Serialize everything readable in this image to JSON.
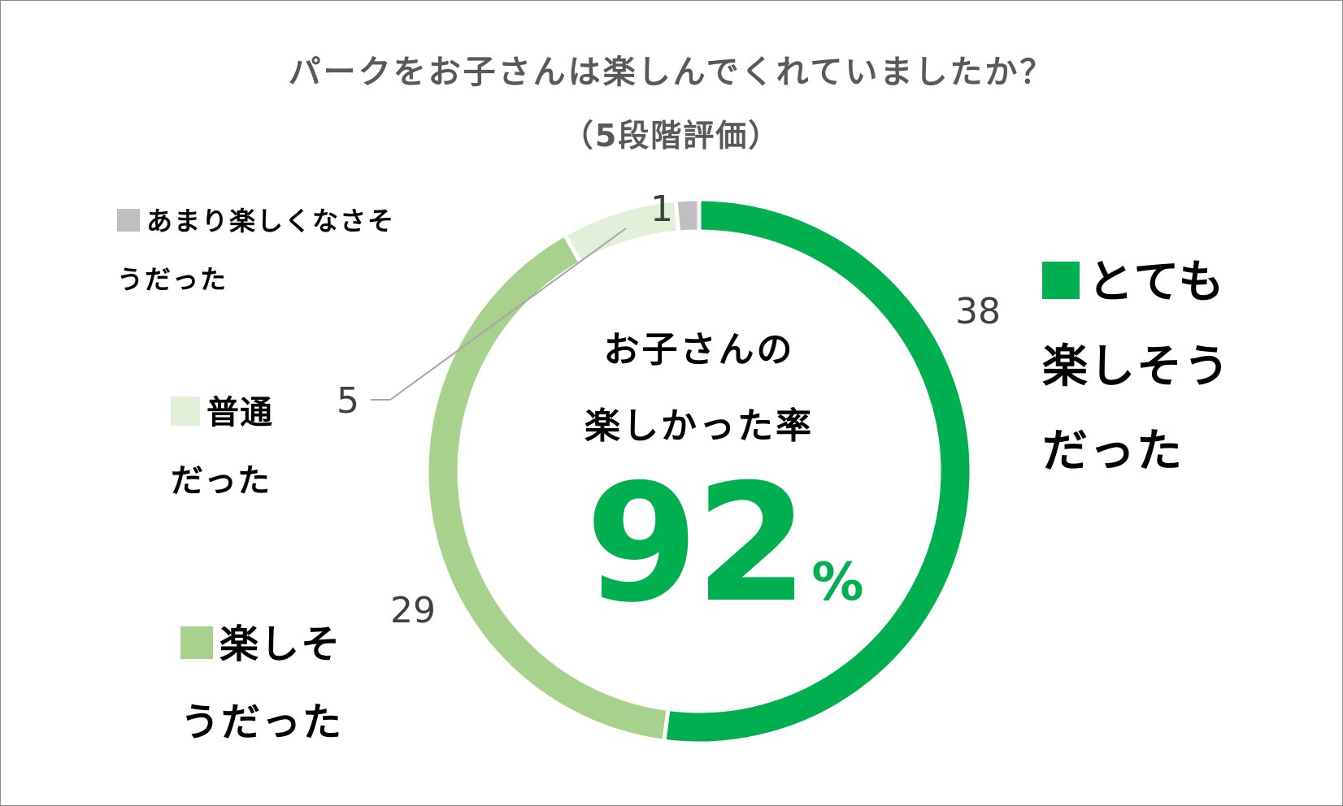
{
  "title": "パークをお子さんは楽しんでくれていましたか？",
  "subtitle": "（5段階評価）",
  "center": {
    "line1": "お子さんの",
    "line2": "楽しかった率",
    "rate_value": "92",
    "rate_unit": "%"
  },
  "legend": {
    "very_good": {
      "line1": "とても",
      "line2": "楽しそう",
      "line3": "だった"
    },
    "good": {
      "line1": "楽しそ",
      "line2": "うだった"
    },
    "normal": {
      "line1": "普通",
      "line2": "だった"
    },
    "not_good": {
      "line1": "あまり楽しくなさそ",
      "line2": "うだった"
    }
  },
  "chart_data": {
    "type": "pie",
    "style": "donut",
    "title": "パークをお子さんは楽しんでくれていましたか？",
    "subtitle": "（5段階評価）",
    "categories": [
      "とても楽しそうだった",
      "楽しそうだった",
      "普通だった",
      "あまり楽しくなさそうだった"
    ],
    "values": [
      38,
      29,
      5,
      1
    ],
    "labels": [
      "38",
      "29",
      "5",
      "1"
    ],
    "colors": [
      "#00b050",
      "#a9d18e",
      "#e2f0d9",
      "#bfbfbf"
    ],
    "start_angle": "12 o'clock, clockwise",
    "center_annotation": "92%"
  }
}
